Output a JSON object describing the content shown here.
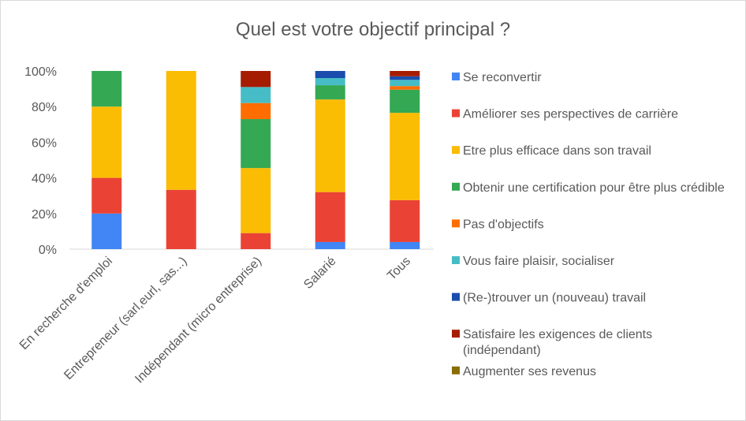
{
  "chart_data": {
    "type": "bar",
    "stacked": true,
    "normalized": true,
    "title": "Quel est votre objectif principal ?",
    "ylim": [
      0,
      100
    ],
    "yticks": [
      "0%",
      "20%",
      "40%",
      "60%",
      "80%",
      "100%"
    ],
    "grid": false,
    "legend_position": "right",
    "categories": [
      "En recherche d'emploi",
      "Entrepreneur (sarl,eurl, sas...)",
      "Indépendant (micro entreprise)",
      "Salarié",
      "Tous"
    ],
    "series": [
      {
        "name": "Se reconvertir",
        "color": "#4285F4",
        "values": [
          20,
          0,
          0,
          4,
          4
        ]
      },
      {
        "name": "Améliorer ses perspectives de carrière",
        "color": "#EA4335",
        "values": [
          20,
          33.3,
          9,
          28,
          23.5
        ]
      },
      {
        "name": "Etre plus efficace dans son travail",
        "color": "#FBBC04",
        "values": [
          40,
          66.7,
          36.5,
          52,
          49
        ]
      },
      {
        "name": "Obtenir une certification pour être plus crédible",
        "color": "#34A853",
        "values": [
          20,
          0,
          27.5,
          8,
          13
        ]
      },
      {
        "name": "Pas d'objectifs",
        "color": "#FF6D01",
        "values": [
          0,
          0,
          9,
          0,
          2
        ]
      },
      {
        "name": "Vous faire plaisir, socialiser",
        "color": "#46BDC6",
        "values": [
          0,
          0,
          9,
          4,
          3.5
        ]
      },
      {
        "name": "(Re-)trouver un (nouveau) travail",
        "color": "#1A4DAD",
        "values": [
          0,
          0,
          0,
          4,
          2
        ]
      },
      {
        "name": "Satisfaire les exigences de clients (indépendant)",
        "color": "#A61C00",
        "values": [
          0,
          0,
          9,
          0,
          3
        ]
      },
      {
        "name": "Augmenter ses revenus",
        "color": "#8A6D00",
        "values": [
          0,
          0,
          0,
          0,
          0
        ]
      }
    ]
  }
}
